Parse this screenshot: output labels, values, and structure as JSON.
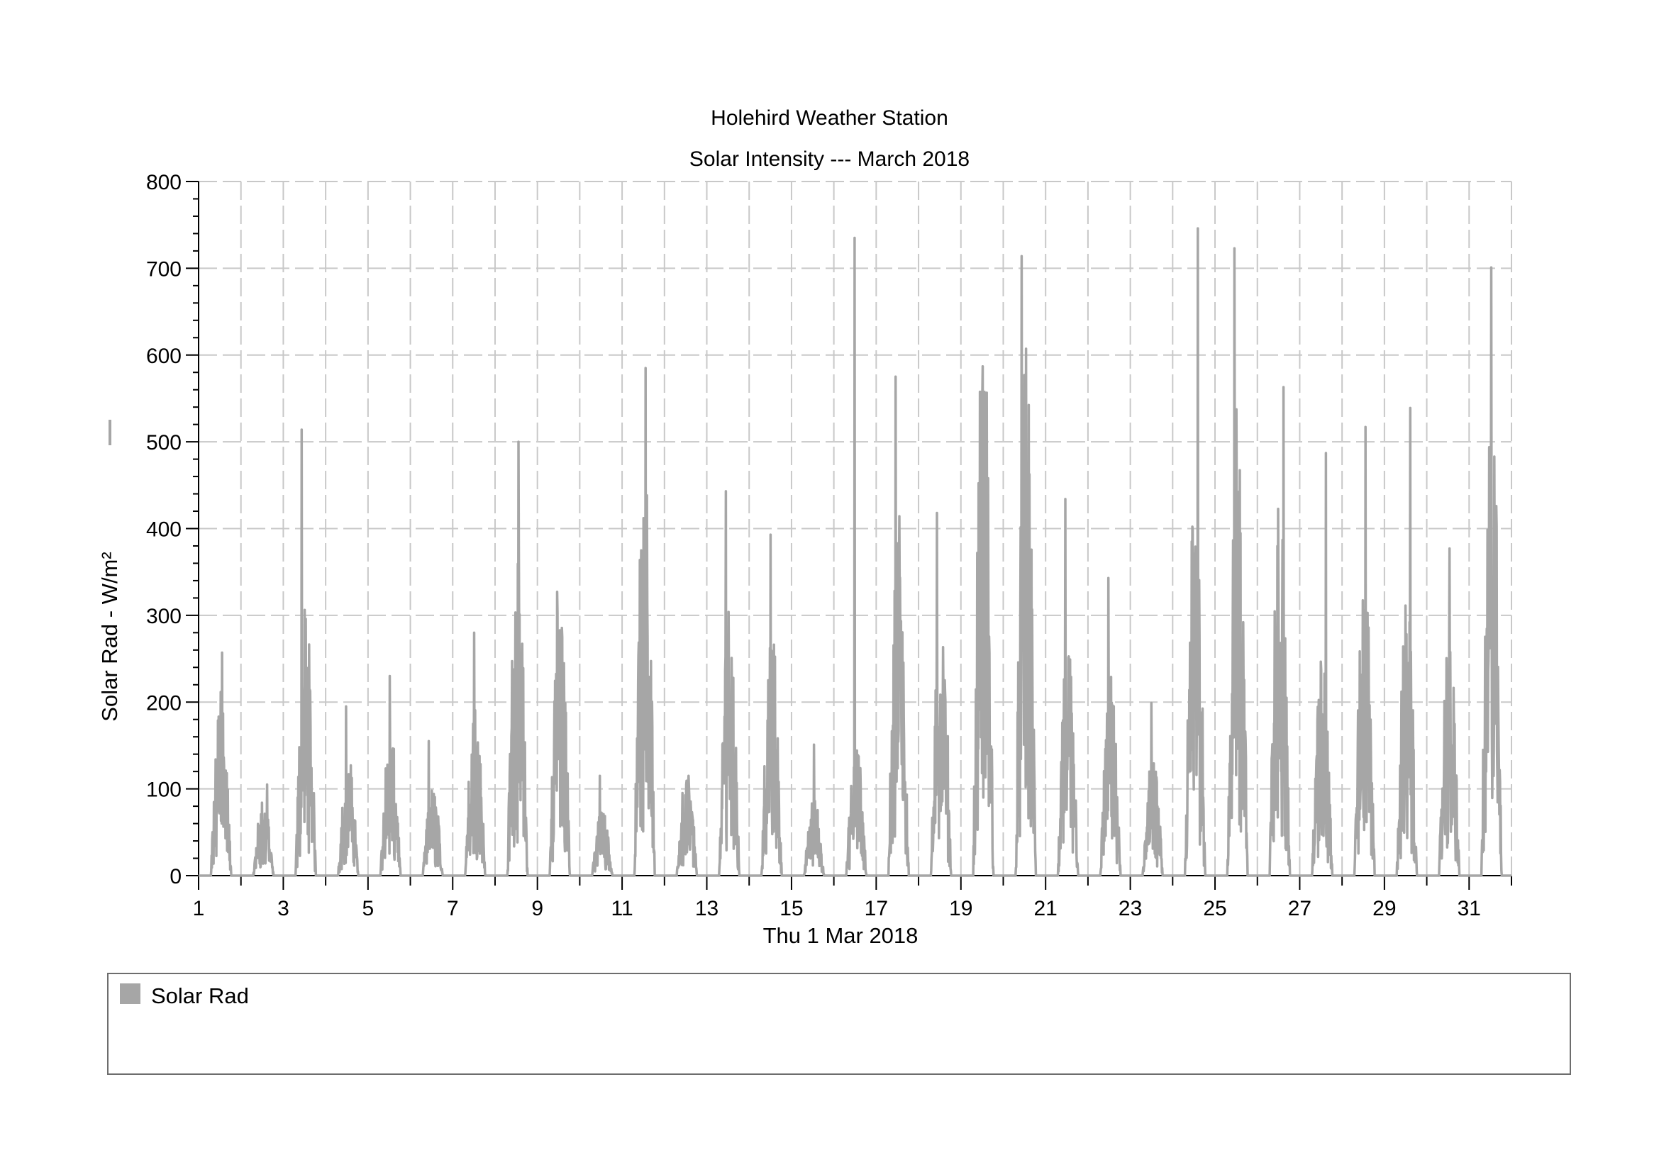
{
  "title": "Holehird Weather Station",
  "subtitle": "Solar Intensity --- March 2018",
  "colors": {
    "series": "#a6a6a6",
    "grid": "#c8c8c8",
    "axis": "#000000",
    "legend_border": "#6d6d6d"
  },
  "legend": {
    "placement": "bottom",
    "items": [
      {
        "label": "Solar Rad",
        "color": "#a6a6a6"
      }
    ]
  },
  "chart_data": {
    "type": "line",
    "title": "Holehird Weather Station",
    "subtitle": "Solar Intensity --- March 2018",
    "xlabel": "Thu 1 Mar 2018",
    "ylabel": "Solar Rad - W/m²",
    "xlim": [
      1,
      32
    ],
    "ylim": [
      0,
      800
    ],
    "grid": true,
    "x_ticks": [
      "1",
      "3",
      "5",
      "7",
      "9",
      "11",
      "13",
      "15",
      "17",
      "19",
      "21",
      "23",
      "25",
      "27",
      "29",
      "31"
    ],
    "y_ticks": [
      "0",
      "100",
      "200",
      "300",
      "400",
      "500",
      "600",
      "700",
      "800"
    ],
    "series": [
      {
        "name": "Solar Rad",
        "daily_peak_w_m2": [
          257,
          105,
          514,
          195,
          230,
          155,
          280,
          500,
          327,
          115,
          585,
          115,
          443,
          393,
          151,
          735,
          575,
          418,
          587,
          714,
          434,
          343,
          199,
          746,
          723,
          563,
          487,
          517,
          539,
          377,
          701
        ],
        "daily_typical_w_m2": [
          170,
          70,
          240,
          110,
          130,
          80,
          160,
          300,
          260,
          60,
          400,
          95,
          250,
          230,
          70,
          120,
          350,
          250,
          520,
          480,
          220,
          180,
          110,
          380,
          420,
          350,
          200,
          280,
          250,
          230,
          450
        ]
      }
    ]
  }
}
